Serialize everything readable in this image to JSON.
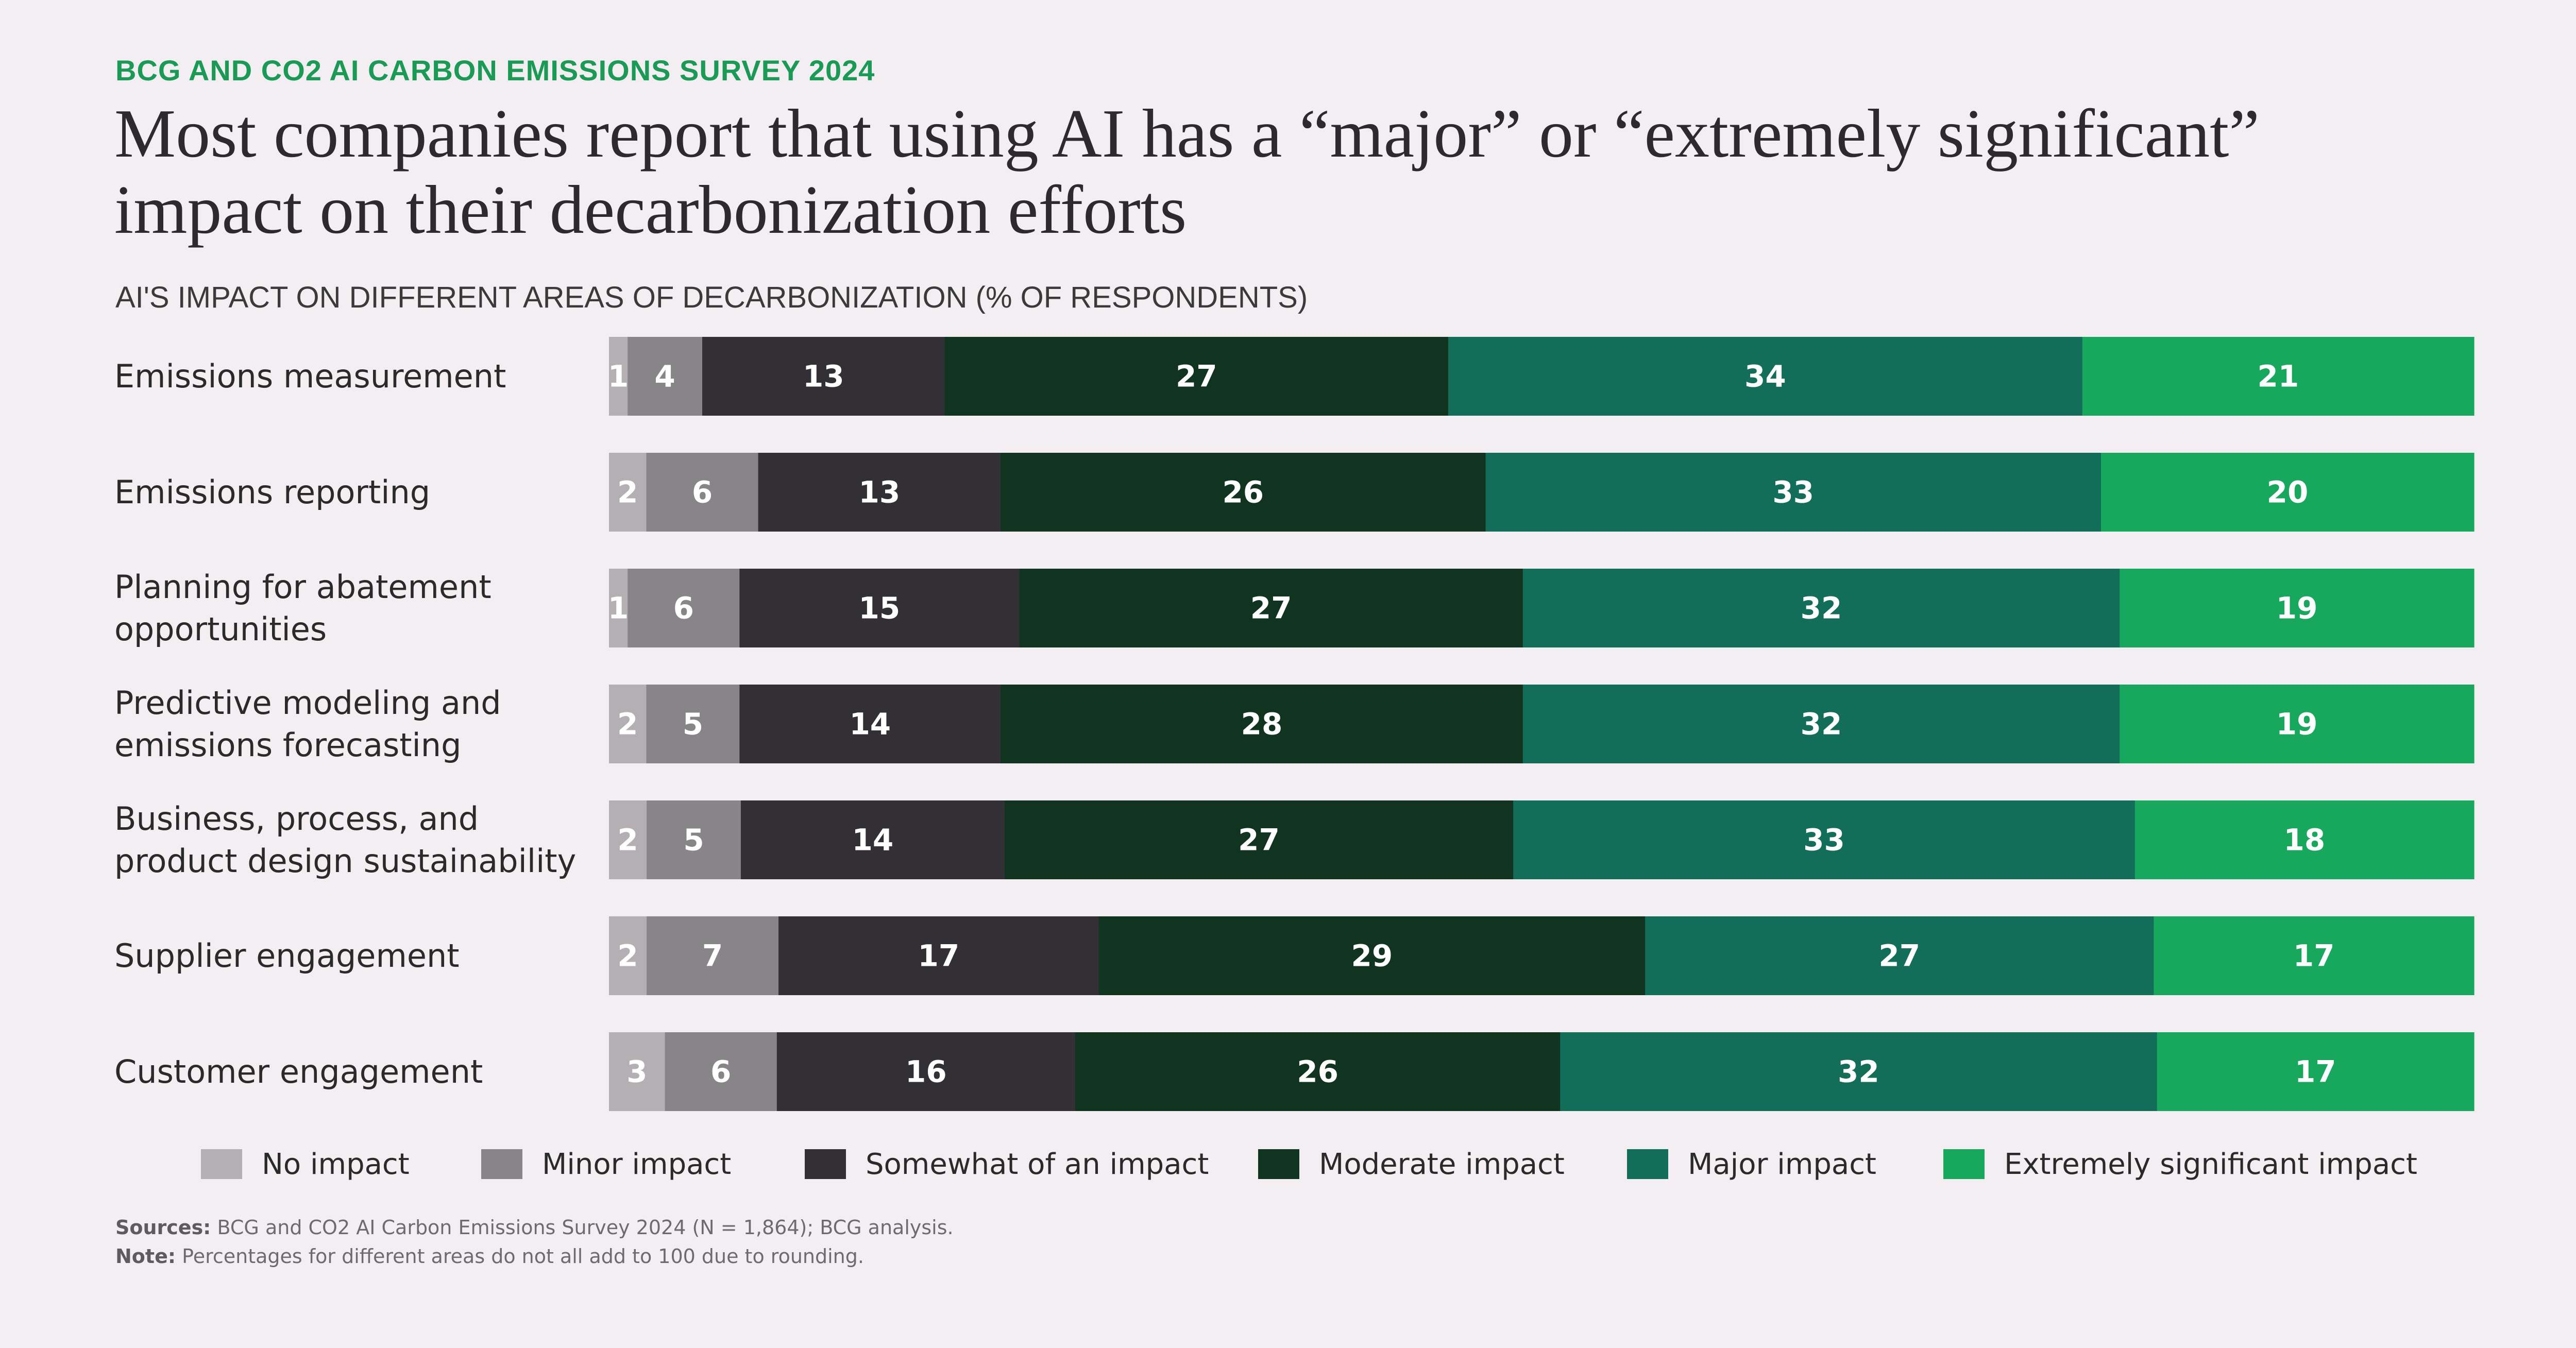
{
  "header": {
    "kicker": "BCG AND CO2 AI CARBON EMISSIONS SURVEY 2024",
    "title": "Most companies report that using AI has a “major” or “extremely significant” impact on their decarbonization efforts",
    "subtitle": "AI'S IMPACT ON DIFFERENT AREAS OF DECARBONIZATION (% OF RESPONDENTS)"
  },
  "chart_data": {
    "type": "bar",
    "orientation": "horizontal",
    "stacked": true,
    "title": "AI'S IMPACT ON DIFFERENT AREAS OF DECARBONIZATION (% OF RESPONDENTS)",
    "xlabel": "",
    "ylabel": "",
    "categories": [
      "Emissions measurement",
      "Emissions reporting",
      "Planning for abatement opportunities",
      "Predictive modeling and emissions forecasting",
      "Business, process, and product design sustainability",
      "Supplier engagement",
      "Customer engagement"
    ],
    "series": [
      {
        "name": "No impact",
        "color": "#b3afb3",
        "values": [
          1,
          2,
          1,
          2,
          2,
          2,
          3
        ]
      },
      {
        "name": "Minor impact",
        "color": "#888589",
        "values": [
          4,
          6,
          6,
          5,
          5,
          7,
          6
        ]
      },
      {
        "name": "Somewhat of an impact",
        "color": "#323034",
        "values": [
          13,
          13,
          15,
          14,
          14,
          17,
          16
        ]
      },
      {
        "name": "Moderate impact",
        "color": "#113420",
        "values": [
          27,
          26,
          27,
          28,
          27,
          29,
          26
        ]
      },
      {
        "name": "Major impact",
        "color": "#126e58",
        "values": [
          34,
          33,
          32,
          32,
          33,
          27,
          32
        ]
      },
      {
        "name": "Extremely significant impact",
        "color": "#17a85d",
        "values": [
          21,
          20,
          19,
          19,
          18,
          17,
          17
        ]
      }
    ],
    "legend_position": "bottom",
    "grid": false
  },
  "footer": {
    "sources_label": "Sources:",
    "sources_text": "BCG and CO2 AI Carbon Emissions Survey 2024 (N = 1,864); BCG analysis.",
    "note_label": "Note:",
    "note_text": "Percentages for different areas do not all add to 100 due to rounding."
  }
}
